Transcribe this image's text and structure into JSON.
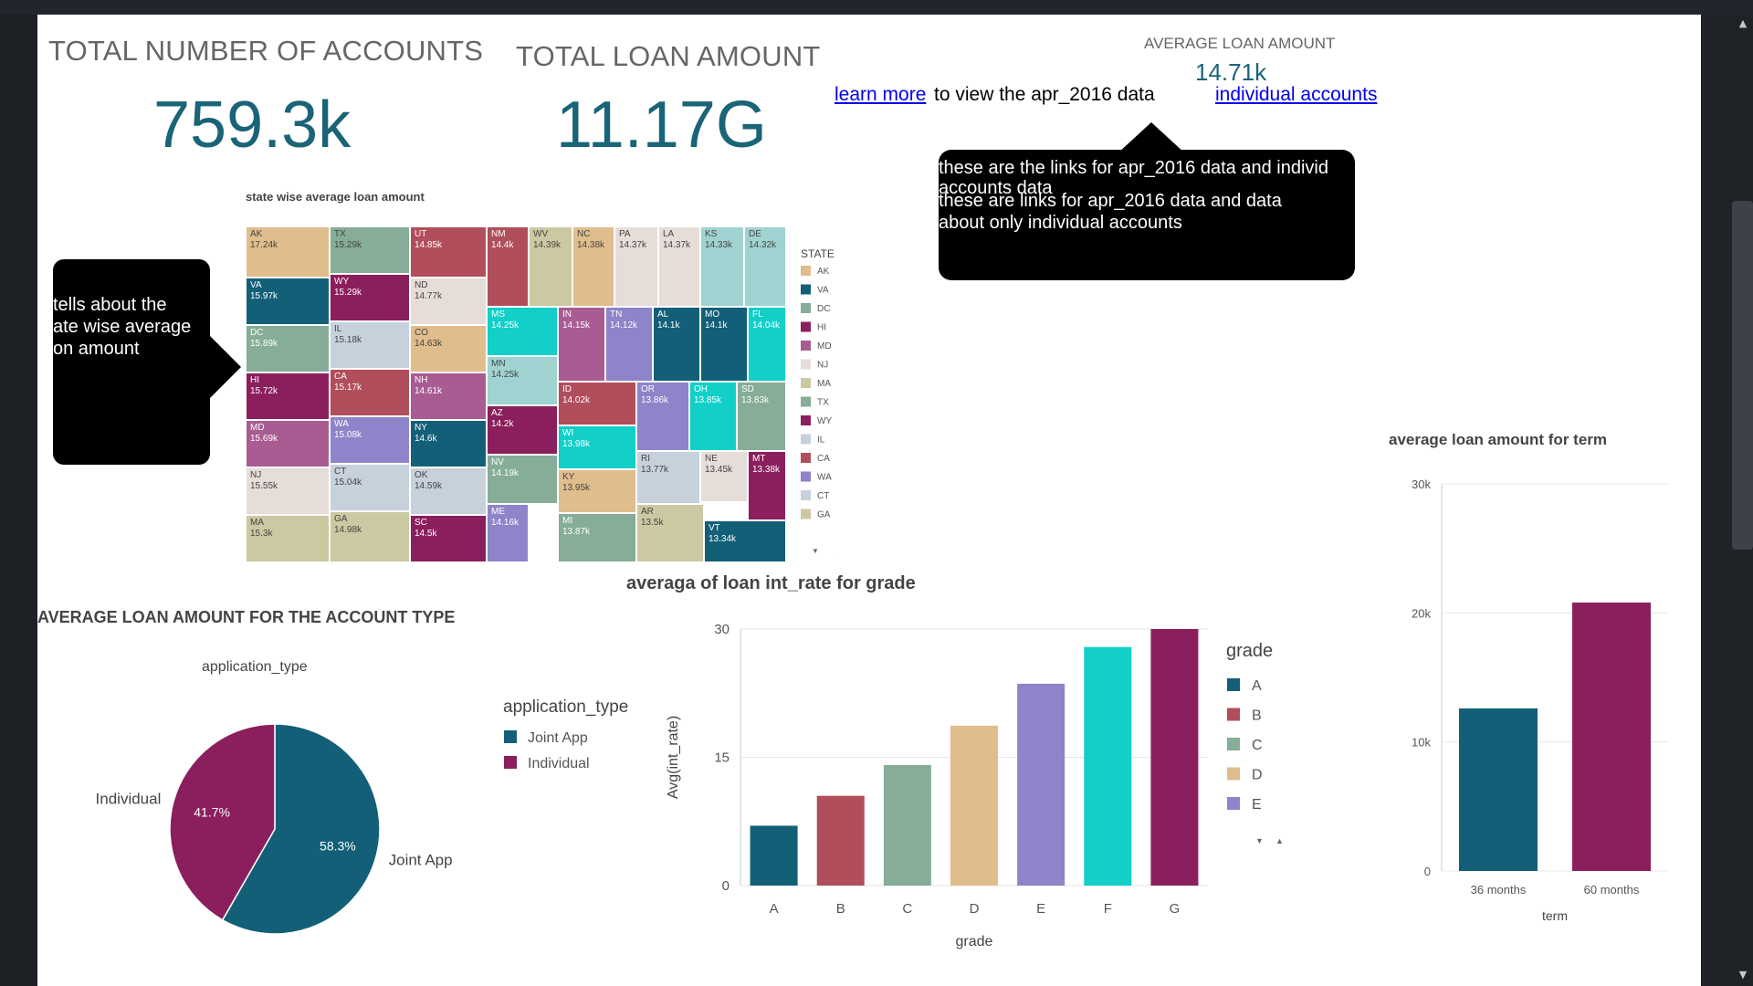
{
  "kpis": {
    "accounts_title": "TOTAL NUMBER OF ACCOUNTS",
    "accounts_value": "759.3k",
    "loan_title": "TOTAL LOAN AMOUNT",
    "loan_value": "11.17G",
    "avg_title": "AVERAGE LOAN AMOUNT",
    "avg_value": "14.71k"
  },
  "links": {
    "learn_more": "learn more",
    "learn_more_suffix": "to view the apr_2016 data",
    "individual": "individual accounts"
  },
  "callouts": {
    "links_line1": "these are the links for apr_2016 data and individ",
    "links_line2": "accounts data",
    "links_line3": "these are links for apr_2016 data and data",
    "links_line4": "about only individual accounts",
    "state_line1": "tells about the",
    "state_line2": "ate wise average",
    "state_line3": "on amount"
  },
  "scrollbar": {
    "up_icon": "▲",
    "down_icon": "▼"
  },
  "colors": {
    "AK": "#e0bd8c",
    "VA": "#135f77",
    "DC": "#86ad97",
    "HI": "#8b1f5d",
    "MD": "#a85c92",
    "NJ": "#e6ddd9",
    "MA": "#ccc8a2",
    "TX": "#86ad97",
    "WY": "#8b1f5d",
    "IL": "#c7d1dc",
    "CA": "#b04e5b",
    "WA": "#8d84c9",
    "CT": "#c7d1dc",
    "GA": "#ccc8a2",
    "teal": "#12cfc8",
    "lightteal": "#9fd3d1",
    "kpi": "#1a6477"
  },
  "chart_data": [
    {
      "type": "treemap",
      "title": "state wise average loan amount",
      "legend_title": "STATE",
      "legend": [
        "AK",
        "VA",
        "DC",
        "HI",
        "MD",
        "NJ",
        "MA",
        "TX",
        "WY",
        "IL",
        "CA",
        "WA",
        "CT",
        "GA"
      ],
      "legend_arrows": [
        "▼",
        "▲"
      ],
      "cells": [
        {
          "state": "AK",
          "value": "17.24k",
          "color": "AK"
        },
        {
          "state": "VA",
          "value": "15.97k",
          "color": "VA"
        },
        {
          "state": "DC",
          "value": "15.89k",
          "color": "DC"
        },
        {
          "state": "HI",
          "value": "15.72k",
          "color": "HI"
        },
        {
          "state": "MD",
          "value": "15.69k",
          "color": "MD"
        },
        {
          "state": "NJ",
          "value": "15.55k",
          "color": "NJ"
        },
        {
          "state": "MA",
          "value": "15.3k",
          "color": "MA"
        },
        {
          "state": "TX",
          "value": "15.29k",
          "color": "TX"
        },
        {
          "state": "WY",
          "value": "15.29k",
          "color": "WY"
        },
        {
          "state": "IL",
          "value": "15.18k",
          "color": "IL"
        },
        {
          "state": "CA",
          "value": "15.17k",
          "color": "CA"
        },
        {
          "state": "WA",
          "value": "15.08k",
          "color": "WA"
        },
        {
          "state": "CT",
          "value": "15.04k",
          "color": "CT"
        },
        {
          "state": "GA",
          "value": "14.98k",
          "color": "GA"
        },
        {
          "state": "UT",
          "value": "14.85k",
          "color": "CA"
        },
        {
          "state": "ND",
          "value": "14.77k",
          "color": "NJ"
        },
        {
          "state": "CO",
          "value": "14.63k",
          "color": "AK"
        },
        {
          "state": "NH",
          "value": "14.61k",
          "color": "MD"
        },
        {
          "state": "NY",
          "value": "14.6k",
          "color": "VA"
        },
        {
          "state": "OK",
          "value": "14.59k",
          "color": "IL"
        },
        {
          "state": "SC",
          "value": "14.5k",
          "color": "HI"
        },
        {
          "state": "NM",
          "value": "14.4k",
          "color": "CA"
        },
        {
          "state": "MS",
          "value": "14.25k",
          "color": "teal"
        },
        {
          "state": "MN",
          "value": "14.25k",
          "color": "lightteal"
        },
        {
          "state": "AZ",
          "value": "14.2k",
          "color": "HI"
        },
        {
          "state": "NV",
          "value": "14.19k",
          "color": "DC"
        },
        {
          "state": "ME",
          "value": "14.16k",
          "color": "WA"
        },
        {
          "state": "WV",
          "value": "14.39k",
          "color": "MA"
        },
        {
          "state": "NC",
          "value": "14.38k",
          "color": "AK"
        },
        {
          "state": "PA",
          "value": "14.37k",
          "color": "NJ"
        },
        {
          "state": "LA",
          "value": "14.37k",
          "color": "NJ"
        },
        {
          "state": "KS",
          "value": "14.33k",
          "color": "lightteal"
        },
        {
          "state": "DE",
          "value": "14.32k",
          "color": "lightteal"
        },
        {
          "state": "IN",
          "value": "14.15k",
          "color": "MD"
        },
        {
          "state": "TN",
          "value": "14.12k",
          "color": "WA"
        },
        {
          "state": "AL",
          "value": "14.1k",
          "color": "VA"
        },
        {
          "state": "MO",
          "value": "14.1k",
          "color": "VA"
        },
        {
          "state": "FL",
          "value": "14.04k",
          "color": "teal"
        },
        {
          "state": "ID",
          "value": "14.02k",
          "color": "CA"
        },
        {
          "state": "OR",
          "value": "13.86k",
          "color": "WA"
        },
        {
          "state": "OH",
          "value": "13.85k",
          "color": "teal"
        },
        {
          "state": "SD",
          "value": "13.83k",
          "color": "DC"
        },
        {
          "state": "WI",
          "value": "13.98k",
          "color": "teal"
        },
        {
          "state": "KY",
          "value": "13.95k",
          "color": "AK"
        },
        {
          "state": "MI",
          "value": "13.87k",
          "color": "DC"
        },
        {
          "state": "RI",
          "value": "13.77k",
          "color": "IL"
        },
        {
          "state": "NE",
          "value": "13.45k",
          "color": "NJ"
        },
        {
          "state": "MT",
          "value": "13.38k",
          "color": "HI"
        },
        {
          "state": "AR",
          "value": "13.5k",
          "color": "MA"
        },
        {
          "state": "VT",
          "value": "13.34k",
          "color": "VA"
        }
      ]
    },
    {
      "type": "pie",
      "title": "AVERAGE LOAN AMOUNT FOR THE ACCOUNT TYPE",
      "subtitle": "application_type",
      "legend_title": "application_type",
      "slices": [
        {
          "label": "Joint App",
          "percent": 58.3,
          "display": "58.3%",
          "color": "#135f77"
        },
        {
          "label": "Individual",
          "percent": 41.7,
          "display": "41.7%",
          "color": "#8b1f5d"
        }
      ]
    },
    {
      "type": "bar",
      "title": "averaga of loan int_rate for grade",
      "xlabel": "grade",
      "ylabel": "Avg(int_rate)",
      "ylim": [
        0,
        30
      ],
      "yticks": [
        0,
        15,
        30
      ],
      "categories": [
        "A",
        "B",
        "C",
        "D",
        "E",
        "F",
        "G"
      ],
      "values": [
        7.0,
        10.5,
        14.1,
        18.7,
        23.6,
        27.9,
        30.3
      ],
      "colors": [
        "#135f77",
        "#b04e5b",
        "#86ad97",
        "#e0bd8c",
        "#8d84c9",
        "#12cfc8",
        "#8b1f5d"
      ],
      "legend_title": "grade",
      "legend": [
        "A",
        "B",
        "C",
        "D",
        "E"
      ],
      "legend_arrows": [
        "▼",
        "▲"
      ]
    },
    {
      "type": "bar",
      "title": "average loan amount for term",
      "xlabel": "term",
      "ylabel": "",
      "ylim": [
        0,
        30000
      ],
      "yticks": [
        0,
        10000,
        20000,
        30000
      ],
      "ytick_labels": [
        "0",
        "10k",
        "20k",
        "30k"
      ],
      "categories": [
        "36 months",
        "60 months"
      ],
      "values": [
        12600,
        20800
      ],
      "colors": [
        "#135f77",
        "#8b1f5d"
      ]
    }
  ]
}
